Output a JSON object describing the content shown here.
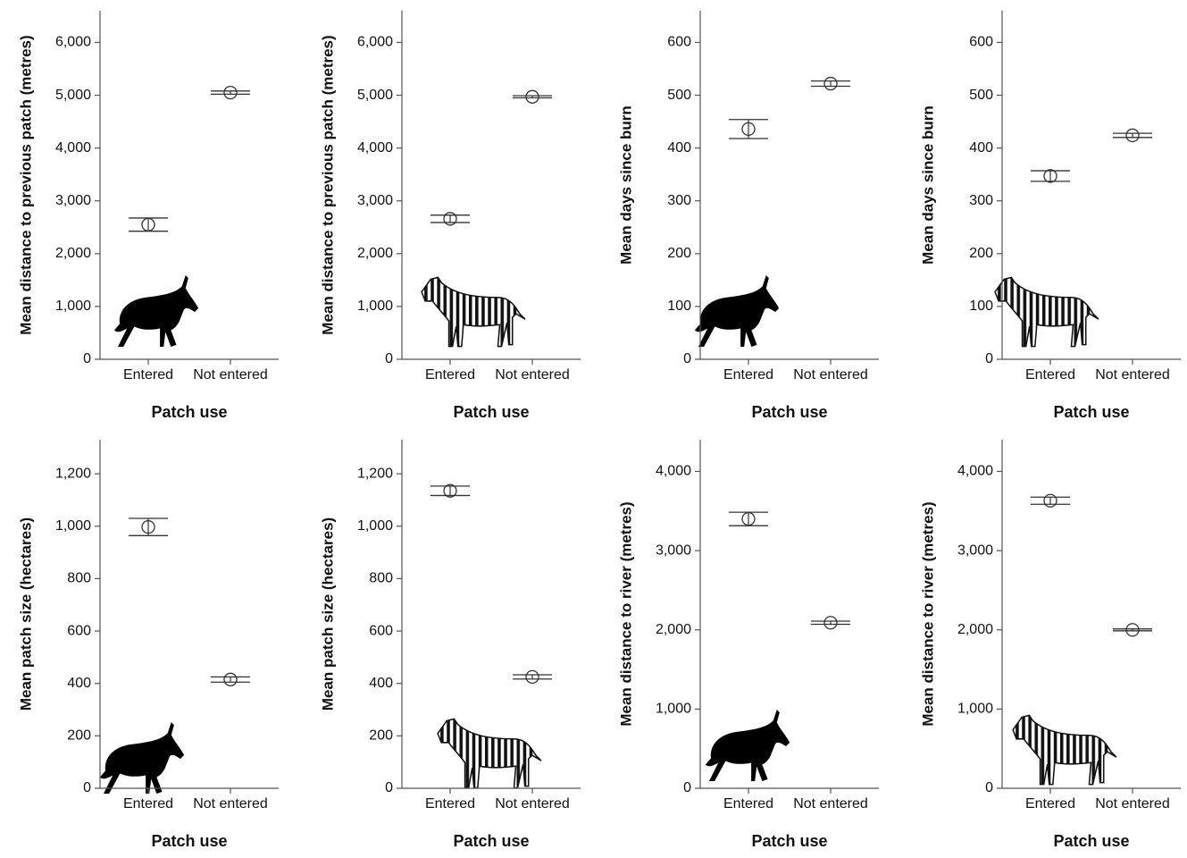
{
  "chart_data": [
    {
      "type": "errorbar",
      "y_label": "Mean distance to previous patch (metres)",
      "x_label": "Patch use",
      "categories": [
        "Entered",
        "Not entered"
      ],
      "values": [
        2550,
        5050
      ],
      "errors": [
        125,
        30
      ],
      "ylim": [
        0,
        6600
      ],
      "yticks": [
        0,
        {
          "value": 1000,
          "label": "1,000"
        },
        {
          "value": 2000,
          "label": "2,000"
        },
        {
          "value": 3000,
          "label": "3,000"
        },
        {
          "value": 4000,
          "label": "4,000"
        },
        {
          "value": 5000,
          "label": "5,000"
        },
        {
          "value": 6000,
          "label": "6,000"
        }
      ]
    },
    {
      "type": "errorbar",
      "y_label": "Mean distance to previous patch (metres)",
      "x_label": "Patch use",
      "categories": [
        "Entered",
        "Not entered"
      ],
      "values": [
        2660,
        4970
      ],
      "errors": [
        70,
        20
      ],
      "ylim": [
        0,
        6600
      ],
      "yticks": [
        0,
        {
          "value": 1000,
          "label": "1,000"
        },
        {
          "value": 2000,
          "label": "2,000"
        },
        {
          "value": 3000,
          "label": "3,000"
        },
        {
          "value": 4000,
          "label": "4,000"
        },
        {
          "value": 5000,
          "label": "5,000"
        },
        {
          "value": 6000,
          "label": "6,000"
        }
      ]
    },
    {
      "type": "errorbar",
      "y_label": "Mean days since burn",
      "x_label": "Patch use",
      "categories": [
        "Entered",
        "Not entered"
      ],
      "values": [
        436,
        522
      ],
      "errors": [
        18,
        5
      ],
      "ylim": [
        0,
        660
      ],
      "yticks": [
        0,
        100,
        200,
        300,
        400,
        500,
        600
      ]
    },
    {
      "type": "errorbar",
      "y_label": "Mean days since burn",
      "x_label": "Patch use",
      "categories": [
        "Entered",
        "Not entered"
      ],
      "values": [
        347,
        424
      ],
      "errors": [
        10,
        4
      ],
      "ylim": [
        0,
        660
      ],
      "yticks": [
        0,
        100,
        200,
        300,
        400,
        500,
        600
      ]
    },
    {
      "type": "errorbar",
      "y_label": "Mean patch size (hectares)",
      "x_label": "Patch use",
      "categories": [
        "Entered",
        "Not entered"
      ],
      "values": [
        997,
        415
      ],
      "errors": [
        33,
        10
      ],
      "ylim": [
        0,
        1330
      ],
      "yticks": [
        0,
        200,
        400,
        600,
        800,
        {
          "value": 1000,
          "label": "1,000"
        },
        {
          "value": 1200,
          "label": "1,200"
        }
      ]
    },
    {
      "type": "errorbar",
      "y_label": "Mean patch size (hectares)",
      "x_label": "Patch use",
      "categories": [
        "Entered",
        "Not entered"
      ],
      "values": [
        1135,
        425
      ],
      "errors": [
        18,
        8
      ],
      "ylim": [
        0,
        1330
      ],
      "yticks": [
        0,
        200,
        400,
        600,
        800,
        {
          "value": 1000,
          "label": "1,000"
        },
        {
          "value": 1200,
          "label": "1,200"
        }
      ]
    },
    {
      "type": "errorbar",
      "y_label": "Mean distance to river (metres)",
      "x_label": "Patch use",
      "categories": [
        "Entered",
        "Not entered"
      ],
      "values": [
        3400,
        2090
      ],
      "errors": [
        85,
        20
      ],
      "ylim": [
        0,
        4400
      ],
      "yticks": [
        0,
        {
          "value": 1000,
          "label": "1,000"
        },
        {
          "value": 2000,
          "label": "2,000"
        },
        {
          "value": 3000,
          "label": "3,000"
        },
        {
          "value": 4000,
          "label": "4,000"
        }
      ]
    },
    {
      "type": "errorbar",
      "y_label": "Mean distance to river (metres)",
      "x_label": "Patch use",
      "categories": [
        "Entered",
        "Not entered"
      ],
      "values": [
        3630,
        2000
      ],
      "errors": [
        45,
        12
      ],
      "ylim": [
        0,
        4400
      ],
      "yticks": [
        0,
        {
          "value": 1000,
          "label": "1,000"
        },
        {
          "value": 2000,
          "label": "2,000"
        },
        {
          "value": 3000,
          "label": "3,000"
        },
        {
          "value": 4000,
          "label": "4,000"
        }
      ]
    }
  ]
}
